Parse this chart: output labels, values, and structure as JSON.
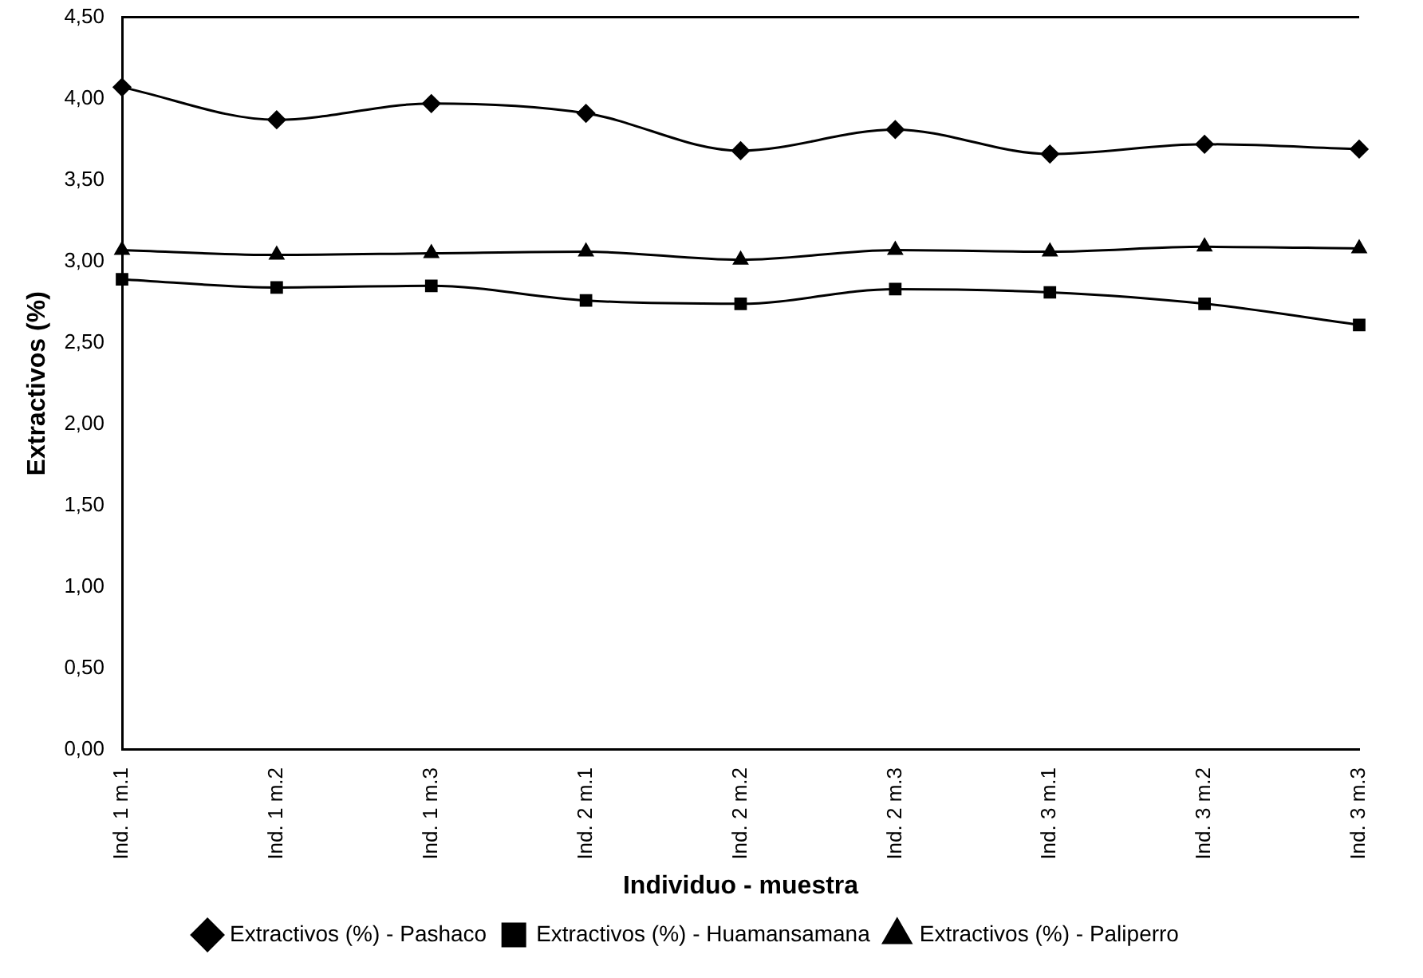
{
  "chart_data": {
    "type": "line",
    "xlabel": "Individuo - muestra",
    "ylabel": "Extractivos (%)",
    "categories": [
      "Ind. 1 m.1",
      "Ind. 1 m.2",
      "Ind. 1 m.3",
      "Ind. 2 m.1",
      "Ind. 2 m.2",
      "Ind. 2 m.3",
      "Ind. 3 m.1",
      "Ind. 3 m.2",
      "Ind. 3 m.3"
    ],
    "series": [
      {
        "name": "Extractivos (%) - Pashaco",
        "color": "#000000",
        "marker": "diamond",
        "values": [
          4.07,
          3.87,
          3.97,
          3.91,
          3.68,
          3.81,
          3.66,
          3.72,
          3.69
        ]
      },
      {
        "name": "Extractivos (%) - Huamansamana",
        "color": "#000000",
        "marker": "square",
        "values": [
          2.89,
          2.84,
          2.85,
          2.76,
          2.74,
          2.83,
          2.81,
          2.74,
          2.61
        ]
      },
      {
        "name": "Extractivos (%) - Paliperro",
        "color": "#000000",
        "marker": "triangle",
        "values": [
          3.07,
          3.04,
          3.05,
          3.06,
          3.01,
          3.07,
          3.06,
          3.09,
          3.08
        ]
      }
    ],
    "ylim": [
      0,
      4.5
    ],
    "yticks": [
      {
        "value": 0,
        "label": "0,00"
      },
      {
        "value": 0.5,
        "label": "0,50"
      },
      {
        "value": 1,
        "label": "1,00"
      },
      {
        "value": 1.5,
        "label": "1,50"
      },
      {
        "value": 2,
        "label": "2,00"
      },
      {
        "value": 2.5,
        "label": "2,50"
      },
      {
        "value": 3,
        "label": "3,00"
      },
      {
        "value": 3.5,
        "label": "3,50"
      },
      {
        "value": 4,
        "label": "4,00"
      },
      {
        "value": 4.5,
        "label": "4,50"
      }
    ],
    "grid": false,
    "legend": "bottom"
  }
}
